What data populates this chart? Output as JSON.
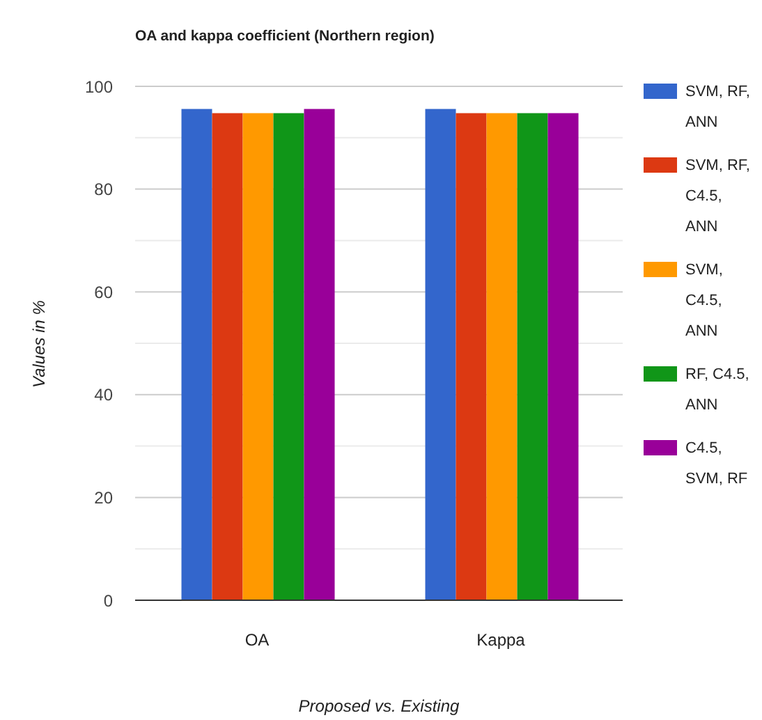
{
  "chart_data": {
    "type": "bar",
    "title": "OA and kappa coefficient (Northern region)",
    "xlabel": "Proposed vs. Existing",
    "ylabel": "Values in %",
    "categories": [
      "OA",
      "Kappa"
    ],
    "series": [
      {
        "name": "SVM, RF, ANN",
        "color": "#3366cc",
        "values": [
          95.6,
          95.6
        ]
      },
      {
        "name": "SVM, RF, C4.5, ANN",
        "color": "#dc3912",
        "values": [
          94.8,
          94.8
        ]
      },
      {
        "name": "SVM, C4.5, ANN",
        "color": "#ff9900",
        "values": [
          94.8,
          94.8
        ]
      },
      {
        "name": "RF, C4.5, ANN",
        "color": "#109618",
        "values": [
          94.8,
          94.8
        ]
      },
      {
        "name": "C4.5, SVM, RF",
        "color": "#990099",
        "values": [
          95.6,
          94.8
        ]
      }
    ],
    "ylim": [
      0,
      100
    ],
    "yticks": [
      0,
      {
        "value": 10,
        "label": null
      },
      20,
      {
        "value": 30,
        "label": null
      },
      40,
      {
        "value": 50,
        "label": null
      },
      60,
      {
        "value": 70,
        "label": null
      },
      80,
      {
        "value": 90,
        "label": null
      },
      100
    ],
    "grid": "y",
    "legend": "right"
  }
}
